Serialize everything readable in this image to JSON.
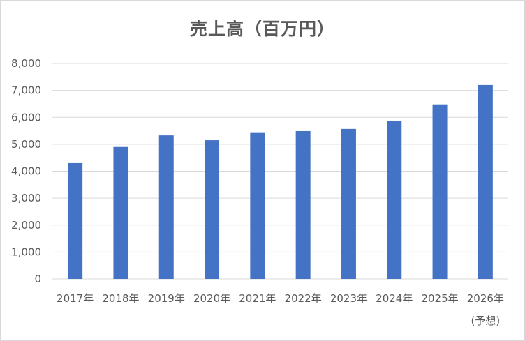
{
  "chart_data": {
    "type": "bar",
    "title": "売上高（百万円）",
    "categories": [
      "2017年",
      "2018年",
      "2019年",
      "2020年",
      "2021年",
      "2022年",
      "2023年",
      "2024年",
      "2025年",
      "2026年"
    ],
    "category_sublabels": [
      "",
      "",
      "",
      "",
      "",
      "",
      "",
      "",
      "",
      "(予想)"
    ],
    "values": [
      4300,
      4900,
      5330,
      5150,
      5420,
      5490,
      5570,
      5860,
      6480,
      7200
    ],
    "ylim": [
      0,
      8000
    ],
    "yticks": [
      0,
      1000,
      2000,
      3000,
      4000,
      5000,
      6000,
      7000,
      8000
    ],
    "ytick_labels": [
      "0",
      "1,000",
      "2,000",
      "3,000",
      "4,000",
      "5,000",
      "6,000",
      "7,000",
      "8,000"
    ],
    "grid": true,
    "bar_color": "#4472c4",
    "grid_color": "#d9d9d9"
  }
}
